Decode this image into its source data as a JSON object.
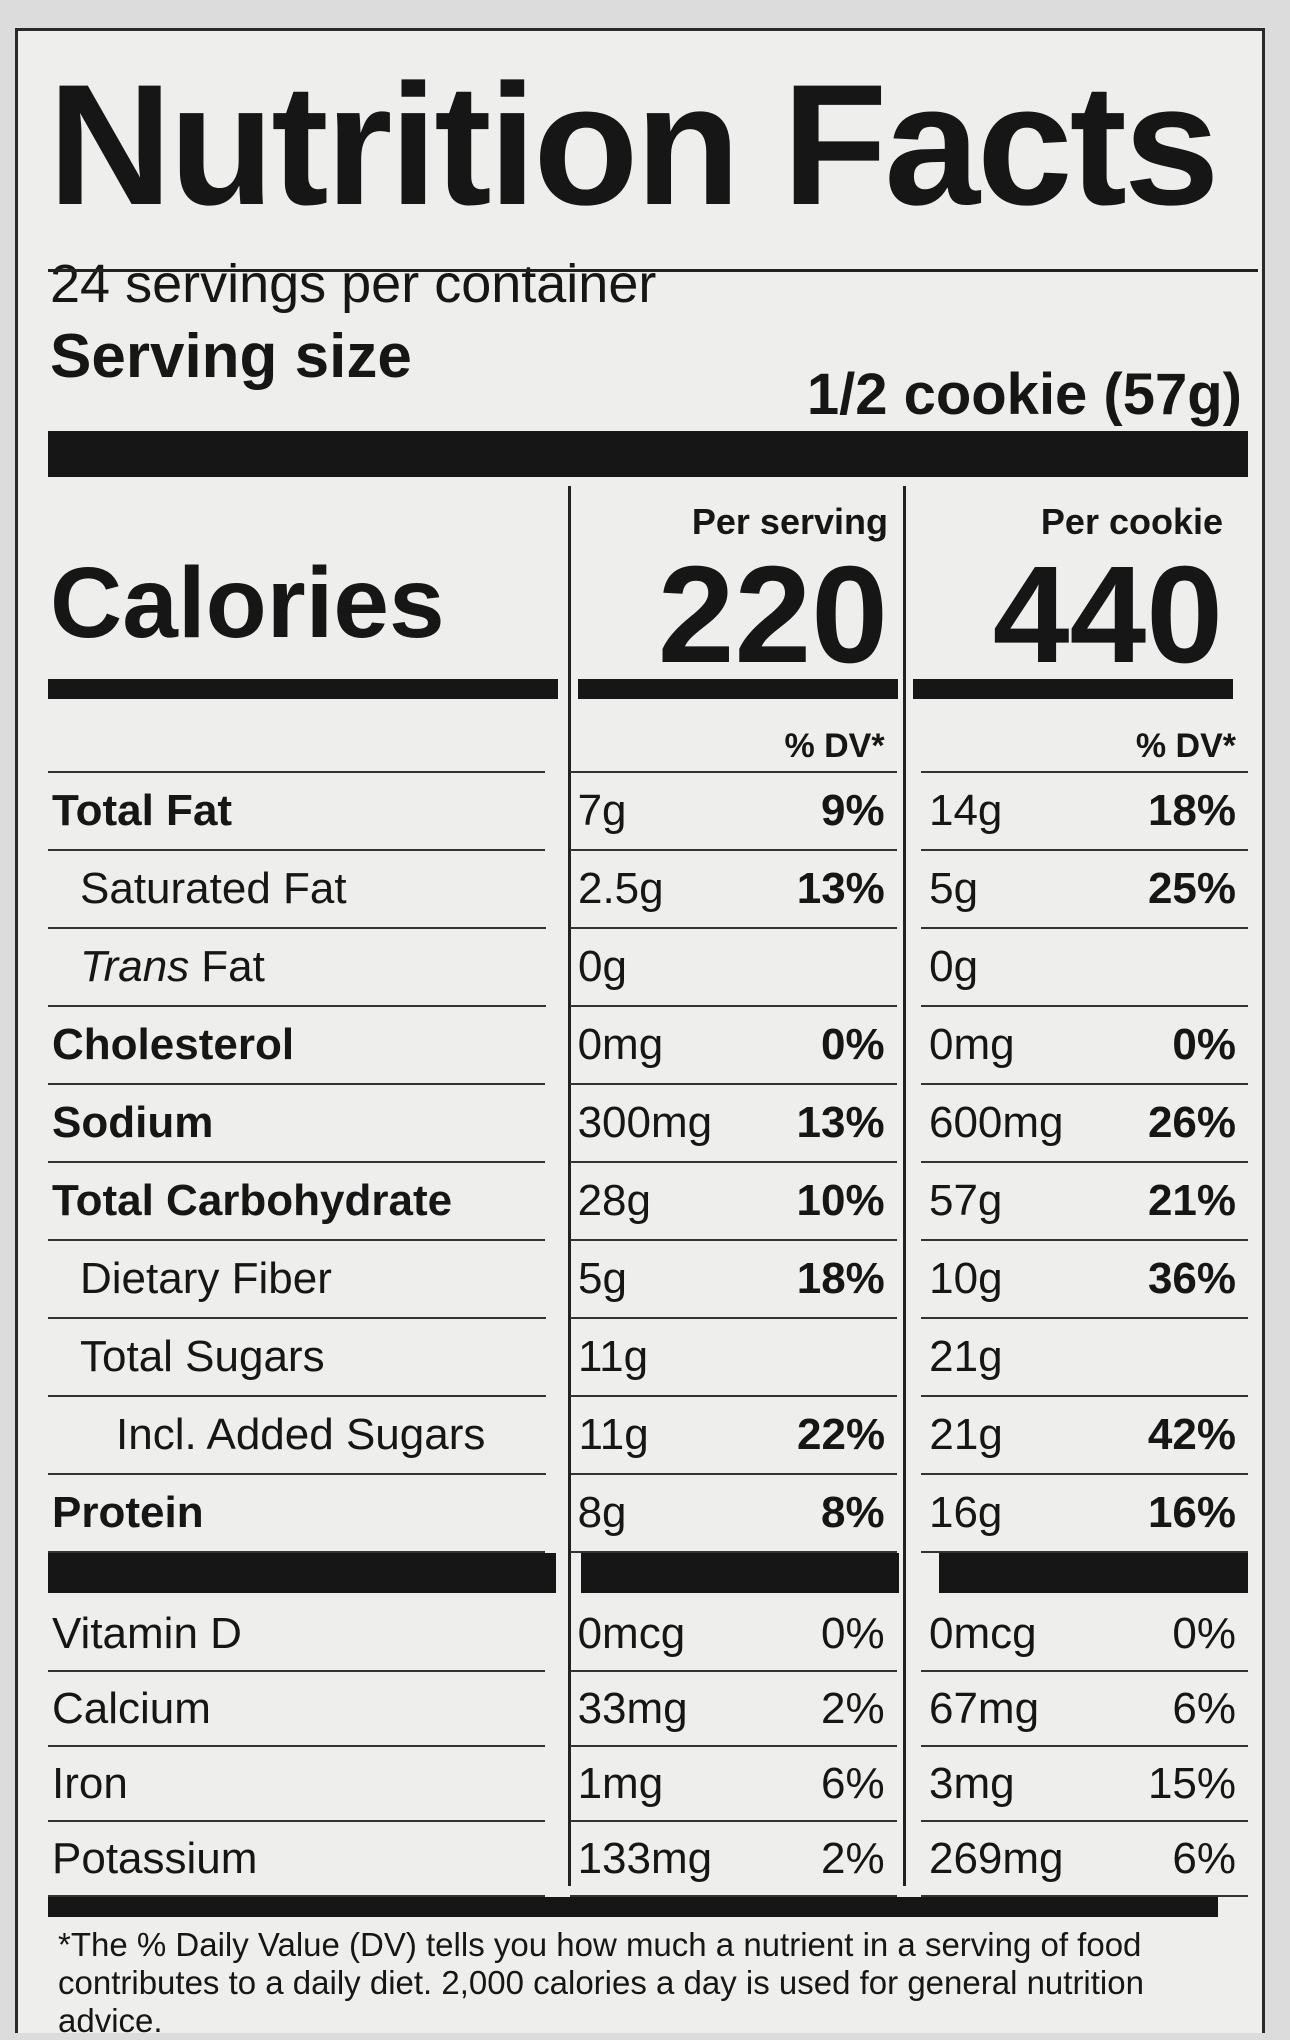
{
  "title": "Nutrition Facts",
  "servings_per_container": "24 servings per container",
  "serving_size": {
    "label": "Serving size",
    "value": "1/2 cookie (57g)"
  },
  "calories": {
    "label": "Calories",
    "columns": [
      {
        "heading": "Per serving",
        "value": 220,
        "dv_heading": "% DV*"
      },
      {
        "heading": "Per cookie",
        "value": 440,
        "dv_heading": "% DV*"
      }
    ]
  },
  "nutrients": [
    {
      "name": "Total Fat",
      "per_serving": {
        "amount": "7g",
        "dv": "9%"
      },
      "per_cookie": {
        "amount": "14g",
        "dv": "18%"
      },
      "sub": [
        {
          "name": "Saturated Fat",
          "per_serving": {
            "amount": "2.5g",
            "dv": "13%"
          },
          "per_cookie": {
            "amount": "5g",
            "dv": "25%"
          }
        },
        {
          "prefix": "Trans",
          "name": "Fat",
          "per_serving": {
            "amount": "0g"
          },
          "per_cookie": {
            "amount": "0g"
          }
        }
      ]
    },
    {
      "name": "Cholesterol",
      "per_serving": {
        "amount": "0mg",
        "dv": "0%"
      },
      "per_cookie": {
        "amount": "0mg",
        "dv": "0%"
      }
    },
    {
      "name": "Sodium",
      "per_serving": {
        "amount": "300mg",
        "dv": "13%"
      },
      "per_cookie": {
        "amount": "600mg",
        "dv": "26%"
      }
    },
    {
      "name": "Total Carbohydrate",
      "per_serving": {
        "amount": "28g",
        "dv": "10%"
      },
      "per_cookie": {
        "amount": "57g",
        "dv": "21%"
      },
      "sub": [
        {
          "name": "Dietary Fiber",
          "per_serving": {
            "amount": "5g",
            "dv": "18%"
          },
          "per_cookie": {
            "amount": "10g",
            "dv": "36%"
          }
        },
        {
          "name": "Total Sugars",
          "per_serving": {
            "amount": "11g"
          },
          "per_cookie": {
            "amount": "21g"
          },
          "sub": [
            {
              "name": "Incl. Added Sugars",
              "per_serving": {
                "amount": "11g",
                "dv": "22%"
              },
              "per_cookie": {
                "amount": "21g",
                "dv": "42%"
              }
            }
          ]
        }
      ]
    },
    {
      "name": "Protein",
      "per_serving": {
        "amount": "8g",
        "dv": "8%"
      },
      "per_cookie": {
        "amount": "16g",
        "dv": "16%"
      }
    }
  ],
  "vitamins": [
    {
      "name": "Vitamin D",
      "per_serving": {
        "amount": "0mcg",
        "dv": "0%"
      },
      "per_cookie": {
        "amount": "0mcg",
        "dv": "0%"
      }
    },
    {
      "name": "Calcium",
      "per_serving": {
        "amount": "33mg",
        "dv": "2%"
      },
      "per_cookie": {
        "amount": "67mg",
        "dv": "6%"
      }
    },
    {
      "name": "Iron",
      "per_serving": {
        "amount": "1mg",
        "dv": "6%"
      },
      "per_cookie": {
        "amount": "3mg",
        "dv": "15%"
      }
    },
    {
      "name": "Potassium",
      "per_serving": {
        "amount": "133mg",
        "dv": "2%"
      },
      "per_cookie": {
        "amount": "269mg",
        "dv": "6%"
      }
    }
  ],
  "footnote": "*The % Daily Value (DV) tells you how much a nutrient in a serving of food contributes to a daily diet. 2,000 calories a day is used for general nutrition advice."
}
